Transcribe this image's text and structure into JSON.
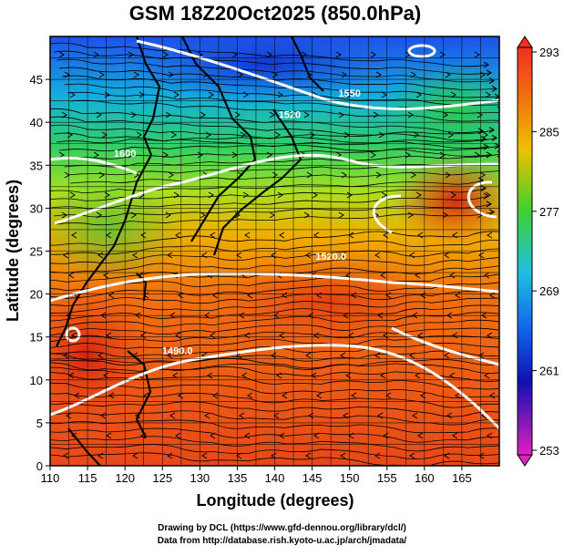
{
  "title": "GSM 18Z20Oct2025 (850.0hPa)",
  "axes": {
    "xlabel": "Longitude (degrees)",
    "ylabel": "Latitude  (degrees)",
    "xlim": [
      110,
      170
    ],
    "ylim": [
      0,
      50
    ],
    "x_ticks": [
      "110",
      "115",
      "120",
      "125",
      "130",
      "135",
      "140",
      "145",
      "150",
      "155",
      "160",
      "165"
    ],
    "x_tick_values": [
      110,
      115,
      120,
      125,
      130,
      135,
      140,
      145,
      150,
      155,
      160,
      165
    ],
    "y_ticks": [
      "0",
      "5",
      "10",
      "15",
      "20",
      "25",
      "30",
      "35",
      "40",
      "45"
    ],
    "y_tick_values": [
      0,
      5,
      10,
      15,
      20,
      25,
      30,
      35,
      40,
      45
    ],
    "grid": true
  },
  "colorbar": {
    "labels": [
      "293",
      "285",
      "277",
      "269",
      "261",
      "253"
    ],
    "values": [
      293,
      285,
      277,
      269,
      261,
      253
    ],
    "min": 253,
    "max": 293
  },
  "contour_labels": [
    {
      "text": "1520.0",
      "lon": 147.5,
      "lat": 24
    },
    {
      "text": "1490.0",
      "lon": 127,
      "lat": 13
    },
    {
      "text": "1520",
      "lon": 142,
      "lat": 40.5
    },
    {
      "text": "1550",
      "lon": 150,
      "lat": 43
    },
    {
      "text": "1600",
      "lon": 120,
      "lat": 36
    }
  ],
  "credits": {
    "line1": "Drawing by DCL (https://www.gfd-dennou.org/library/dcl/)",
    "line2": "Data from http://database.rish.kyoto-u.ac.jp/arch/jmadata/"
  },
  "colors": {
    "cold": "#1a40e0",
    "cool": "#10b4e0",
    "mild": "#40d040",
    "warm": "#f0a000",
    "hot": "#e84010"
  }
}
